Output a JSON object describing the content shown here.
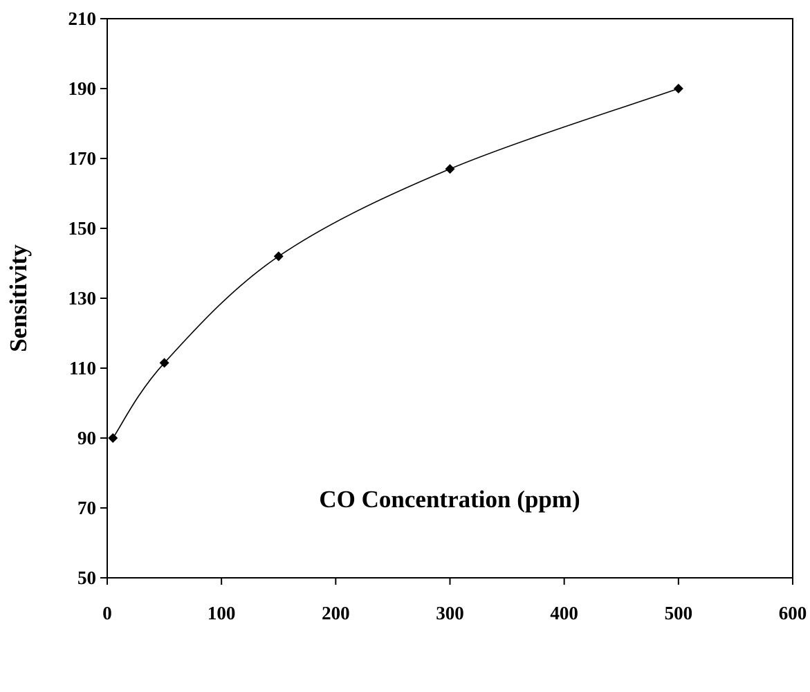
{
  "chart_data": {
    "type": "line",
    "title": "",
    "xlabel": "CO Concentration (ppm)",
    "ylabel": "Sensitivity",
    "xlim": [
      0,
      600
    ],
    "ylim": [
      50,
      210
    ],
    "xticks": [
      0,
      100,
      200,
      300,
      400,
      500,
      600
    ],
    "yticks": [
      50,
      70,
      90,
      110,
      130,
      150,
      170,
      190,
      210
    ],
    "grid": false,
    "legend": "none",
    "series": [
      {
        "marker": "diamond",
        "color": "#000000",
        "smooth": true,
        "x": [
          5,
          50,
          150,
          300,
          500
        ],
        "y": [
          90,
          111.5,
          142,
          167,
          190
        ]
      }
    ]
  }
}
